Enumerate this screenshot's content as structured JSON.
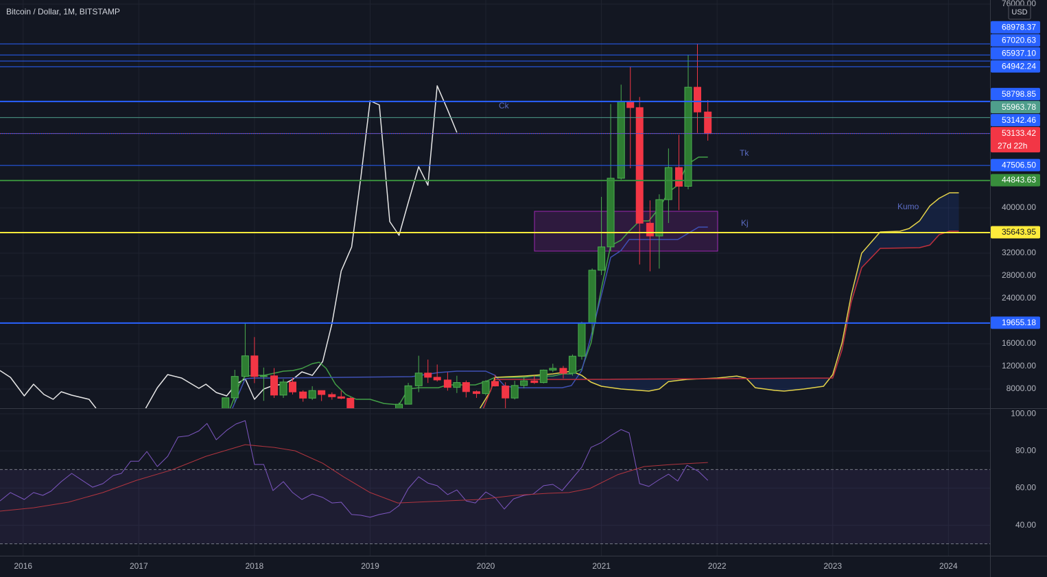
{
  "chart_data": [
    {
      "type": "candlestick",
      "title": "Bitcoin / Dollar, 1M, BITSTAMP",
      "currency": "USD",
      "xlim": [
        2015.8,
        2024.36
      ],
      "ylim": [
        4610,
        76730
      ],
      "xticks": [
        2016,
        2017,
        2018,
        2019,
        2020,
        2021,
        2022,
        2023,
        2024
      ],
      "yticks": [
        {
          "value": 76000,
          "label": "76000.00"
        },
        {
          "value": 40000,
          "label": "40000.00"
        },
        {
          "value": 32000,
          "label": "32000.00"
        },
        {
          "value": 28000,
          "label": "28000.00"
        },
        {
          "value": 24000,
          "label": "24000.00"
        },
        {
          "value": 16000,
          "label": "16000.00"
        },
        {
          "value": 12000,
          "label": "12000.00"
        },
        {
          "value": 8000,
          "label": "8000.00"
        }
      ],
      "grid": true,
      "up_color": "#2e7d32",
      "down_color": "#f23645",
      "candles": {
        "x": [
          2017.75,
          2017.83,
          2017.92,
          2018.0,
          2018.08,
          2018.17,
          2018.25,
          2018.33,
          2018.42,
          2018.5,
          2018.58,
          2018.67,
          2018.75,
          2018.83,
          2018.92,
          2019.0,
          2019.08,
          2019.17,
          2019.25,
          2019.33,
          2019.42,
          2019.5,
          2019.58,
          2019.67,
          2019.75,
          2019.83,
          2019.92,
          2020.0,
          2020.08,
          2020.17,
          2020.25,
          2020.33,
          2020.42,
          2020.5,
          2020.58,
          2020.67,
          2020.75,
          2020.83,
          2020.92,
          2021.0,
          2021.08,
          2021.17,
          2021.25,
          2021.33,
          2021.42,
          2021.5,
          2021.58,
          2021.67,
          2021.75,
          2021.83,
          2021.92
        ],
        "open": [
          4360,
          6450,
          10230,
          13860,
          10220,
          10330,
          6930,
          9240,
          7490,
          6390,
          7730,
          7030,
          6630,
          6370,
          4040,
          3740,
          3460,
          4100,
          4100,
          5320,
          8570,
          10820,
          10080,
          9600,
          8290,
          9150,
          7540,
          7200,
          9350,
          8540,
          6410,
          8630,
          9450,
          9140,
          11350,
          11660,
          10780,
          13800,
          19700,
          28990,
          33110,
          45240,
          58800,
          57720,
          37300,
          35040,
          41460,
          47130,
          43820,
          61320,
          56950
        ],
        "high": [
          6470,
          11400,
          19666,
          17180,
          11790,
          11700,
          9760,
          9990,
          7780,
          8500,
          7760,
          7410,
          7680,
          6580,
          4250,
          4100,
          4200,
          4140,
          5600,
          9090,
          13880,
          13200,
          12330,
          10960,
          10350,
          9510,
          7750,
          9580,
          10500,
          9190,
          9460,
          10080,
          10390,
          11440,
          12470,
          12080,
          14100,
          19900,
          29300,
          41950,
          58350,
          61780,
          64900,
          59600,
          41330,
          42400,
          50500,
          52920,
          66970,
          68980,
          59040
        ],
        "low": [
          4110,
          5510,
          10130,
          9040,
          5920,
          6430,
          6430,
          7030,
          5760,
          6070,
          5880,
          6120,
          6210,
          3550,
          3130,
          3340,
          3380,
          3850,
          4090,
          5300,
          7450,
          9070,
          9330,
          7710,
          7300,
          6520,
          6430,
          6870,
          8450,
          3850,
          6150,
          8120,
          8910,
          8990,
          10980,
          9880,
          10370,
          13200,
          17600,
          28130,
          32300,
          45000,
          47000,
          30000,
          28800,
          29280,
          37330,
          39600,
          43290,
          53250,
          51880
        ],
        "close": [
          6450,
          10230,
          13860,
          10220,
          10330,
          6930,
          9240,
          7490,
          6390,
          7730,
          7030,
          6630,
          6370,
          4040,
          3740,
          3460,
          4100,
          4100,
          5320,
          8570,
          10820,
          10080,
          9600,
          8290,
          9150,
          7540,
          7200,
          9350,
          8540,
          6410,
          8630,
          9450,
          9140,
          11350,
          11660,
          10780,
          13800,
          19700,
          28990,
          33110,
          45240,
          58800,
          57720,
          37300,
          35040,
          41460,
          47130,
          43820,
          61320,
          56950,
          53133.42
        ]
      },
      "series": [
        {
          "name": "Ck",
          "color": "#e8e8e8",
          "x": [
            2015.8,
            2015.89,
            2016.01,
            2016.09,
            2016.18,
            2016.26,
            2016.33,
            2016.42,
            2016.57,
            2016.63,
            2016.85,
            2017.06,
            2017.16,
            2017.25,
            2017.37,
            2017.52,
            2017.58,
            2017.67,
            2017.76,
            2017.84,
            2017.92,
            2018.0,
            2018.08,
            2018.16,
            2018.25,
            2018.33,
            2018.41,
            2018.5,
            2018.59,
            2018.67,
            2018.75,
            2018.84,
            2018.92,
            2019.0,
            2019.08,
            2019.17,
            2019.25,
            2019.33,
            2019.42,
            2019.5,
            2019.58,
            2019.67,
            2019.75
          ],
          "values": [
            11270,
            10060,
            6790,
            8850,
            7030,
            6180,
            7520,
            6910,
            6180,
            4610,
            null,
            4610,
            8240,
            10550,
            9940,
            8120,
            8850,
            7390,
            6790,
            8850,
            9820,
            6180,
            8000,
            8610,
            8850,
            9700,
            11030,
            10420,
            12850,
            19520,
            28850,
            33090,
            45450,
            58910,
            58180,
            37580,
            35150,
            40970,
            47270,
            44000,
            61580,
            57330,
            53330
          ]
        },
        {
          "name": "Tk",
          "color": "#43a047",
          "x": [
            2017.79,
            2017.87,
            2017.92,
            2018.0,
            2018.08,
            2018.17,
            2018.25,
            2018.33,
            2018.41,
            2018.5,
            2018.56,
            2018.62,
            2018.7,
            2018.79,
            2018.88,
            2019.0,
            2019.12,
            2019.25,
            2019.33,
            2019.42,
            2019.59,
            2019.67,
            2019.75,
            2019.91,
            2020.0,
            2020.08,
            2020.33,
            2020.41,
            2020.58,
            2020.66,
            2020.74,
            2020.83,
            2020.91,
            2021.0,
            2021.08,
            2021.17,
            2021.24,
            2021.33,
            2021.41,
            2021.5,
            2021.58,
            2021.66,
            2021.74,
            2021.84,
            2021.92
          ],
          "values": [
            4610,
            8850,
            10300,
            10420,
            10420,
            10790,
            11150,
            11270,
            11640,
            12490,
            12730,
            11640,
            8850,
            7030,
            6180,
            6180,
            5450,
            5210,
            8000,
            8240,
            8240,
            8730,
            8730,
            8730,
            9330,
            10060,
            10060,
            10300,
            10300,
            10670,
            10670,
            11520,
            16120,
            25820,
            33330,
            34300,
            35880,
            37700,
            37700,
            40000,
            42790,
            44000,
            47640,
            48970,
            48970
          ]
        },
        {
          "name": "Kj",
          "color": "#3f51b5",
          "x": [
            2017.81,
            2017.92,
            2018.0,
            2018.17,
            2018.76,
            2019.36,
            2019.59,
            2019.75,
            2020.0,
            2020.08,
            2020.16,
            2020.25,
            2020.66,
            2020.74,
            2020.83,
            2020.91,
            2021.0,
            2021.08,
            2021.17,
            2021.24,
            2021.33,
            2021.66,
            2021.84,
            2021.92
          ],
          "values": [
            4610,
            9820,
            9940,
            9940,
            10060,
            10180,
            10910,
            11150,
            11150,
            10420,
            8610,
            8240,
            8240,
            8610,
            11270,
            17330,
            24610,
            31270,
            32480,
            34420,
            34420,
            34420,
            36610,
            36610
          ]
        },
        {
          "color": "#e6d44a",
          "x": [
            2019.95,
            2020.04,
            2020.08,
            2020.33,
            2020.58,
            2020.74,
            2020.83,
            2020.91,
            2021.0,
            2021.17,
            2021.33,
            2021.41,
            2021.5,
            2021.58,
            2021.74,
            2022.0,
            2022.17,
            2022.25,
            2022.33,
            2022.5,
            2022.58,
            2022.75,
            2022.92,
            2023.0,
            2023.08,
            2023.16,
            2023.25,
            2023.41,
            2023.58,
            2023.66,
            2023.75,
            2023.84,
            2023.92,
            2024.01,
            2024.09
          ],
          "values": [
            4610,
            7640,
            10060,
            10300,
            10670,
            11150,
            10420,
            9210,
            8490,
            8000,
            7760,
            7640,
            8000,
            9330,
            9700,
            9940,
            10300,
            9940,
            8240,
            7760,
            7640,
            8000,
            8490,
            10550,
            16120,
            24610,
            32000,
            35760,
            35880,
            36360,
            37700,
            40360,
            41700,
            42670,
            42670
          ]
        },
        {
          "color": "#c0303c",
          "x": [
            2019.98,
            2020.08,
            2020.74,
            2020.83,
            2023.0,
            2023.08,
            2023.16,
            2023.25,
            2023.41,
            2023.75,
            2023.84,
            2023.92,
            2024.01,
            2024.09
          ],
          "values": [
            4610,
            9700,
            9700,
            9700,
            9940,
            14910,
            23390,
            29450,
            32850,
            32970,
            33450,
            35270,
            35880,
            35880
          ]
        }
      ],
      "cloud_label": "Kumo",
      "levels": [
        {
          "value": 68978.37,
          "color": "#2962ff",
          "width": 1
        },
        {
          "value": 67020.63,
          "color": "#2962ff",
          "width": 1
        },
        {
          "value": 65937.1,
          "label": "65937.10",
          "color": "#2962ff",
          "width": 1
        },
        {
          "value": 64942.24,
          "color": "#2962ff",
          "width": 1
        },
        {
          "value": 58798.85,
          "color": "#2962ff",
          "width": 2
        },
        {
          "value": 55963.78,
          "color": "#4f9e8c",
          "width": 1
        },
        {
          "value": 53142.46,
          "color": "#2962ff",
          "width": 1
        },
        {
          "value": 53133.42,
          "color": "#f23645",
          "width": 1,
          "dash": true,
          "countdown": "27d 22h"
        },
        {
          "value": 47506.5,
          "label": "47506.50",
          "color": "#2962ff",
          "width": 1
        },
        {
          "value": 44843.63,
          "color": "#388e3c",
          "width": 2
        },
        {
          "value": 35643.95,
          "color": "#ffeb3b",
          "width": 2
        },
        {
          "value": 19655.18,
          "color": "#2962ff",
          "width": 2
        }
      ]
    },
    {
      "type": "line",
      "ylim": [
        23.6,
        103.0
      ],
      "yticks": [
        {
          "value": 100,
          "label": "100.00"
        },
        {
          "value": 80,
          "label": "80.00"
        },
        {
          "value": 60,
          "label": "60.00"
        },
        {
          "value": 40,
          "label": "40.00"
        }
      ],
      "grid": true,
      "bands": [
        30,
        70
      ],
      "band_color": "#7e57c2",
      "series": [
        {
          "color": "#7e57c2",
          "x": [
            2015.8,
            2015.89,
            2016.01,
            2016.09,
            2016.17,
            2016.24,
            2016.33,
            2016.42,
            2016.51,
            2016.6,
            2016.69,
            2016.78,
            2016.85,
            2016.93,
            2017.0,
            2017.07,
            2017.16,
            2017.25,
            2017.34,
            2017.43,
            2017.52,
            2017.59,
            2017.67,
            2017.76,
            2017.84,
            2017.92,
            2018.0,
            2018.08,
            2018.16,
            2018.25,
            2018.33,
            2018.41,
            2018.5,
            2018.59,
            2018.67,
            2018.75,
            2018.84,
            2018.92,
            2019.0,
            2019.08,
            2019.17,
            2019.25,
            2019.33,
            2019.42,
            2019.5,
            2019.58,
            2019.67,
            2019.75,
            2019.83,
            2019.91,
            2020.0,
            2020.08,
            2020.16,
            2020.24,
            2020.33,
            2020.41,
            2020.5,
            2020.58,
            2020.66,
            2020.74,
            2020.83,
            2020.91,
            2021.0,
            2021.08,
            2021.17,
            2021.24,
            2021.33,
            2021.41,
            2021.5,
            2021.58,
            2021.66,
            2021.74,
            2021.84,
            2021.92
          ],
          "values": [
            53.1,
            57.6,
            53.9,
            57.6,
            56.1,
            58.3,
            63.5,
            67.9,
            64.2,
            60.5,
            62.4,
            66.8,
            67.9,
            74.5,
            74.5,
            79.7,
            71.6,
            77.1,
            87.5,
            88.2,
            90.8,
            94.8,
            86.0,
            91.1,
            94.5,
            96.3,
            72.7,
            72.7,
            58.7,
            63.5,
            57.6,
            53.9,
            56.8,
            55.0,
            52.0,
            52.4,
            45.8,
            45.4,
            44.3,
            45.8,
            46.9,
            50.6,
            59.8,
            66.1,
            62.7,
            61.3,
            56.5,
            59.0,
            53.1,
            52.0,
            57.9,
            55.0,
            48.7,
            54.2,
            56.1,
            56.8,
            61.3,
            62.0,
            58.7,
            64.6,
            71.2,
            81.9,
            84.5,
            88.2,
            91.5,
            89.7,
            62.4,
            60.9,
            64.6,
            67.5,
            63.8,
            72.3,
            69.0,
            64.2
          ]
        },
        {
          "color": "#b2353f",
          "x": [
            2015.8,
            2016.09,
            2016.39,
            2016.69,
            2016.98,
            2017.28,
            2017.58,
            2017.92,
            2018.17,
            2018.35,
            2018.59,
            2018.77,
            2019.0,
            2019.24,
            2019.65,
            2019.95,
            2020.25,
            2020.54,
            2020.72,
            2020.9,
            2021.14,
            2021.37,
            2021.61,
            2021.92
          ],
          "values": [
            47.6,
            49.4,
            52.4,
            57.6,
            64.2,
            69.7,
            77.1,
            83.4,
            81.9,
            80.1,
            73.4,
            66.1,
            57.6,
            52.0,
            53.1,
            53.9,
            56.1,
            57.2,
            57.6,
            59.8,
            67.2,
            71.6,
            72.7,
            73.8
          ]
        }
      ]
    }
  ]
}
